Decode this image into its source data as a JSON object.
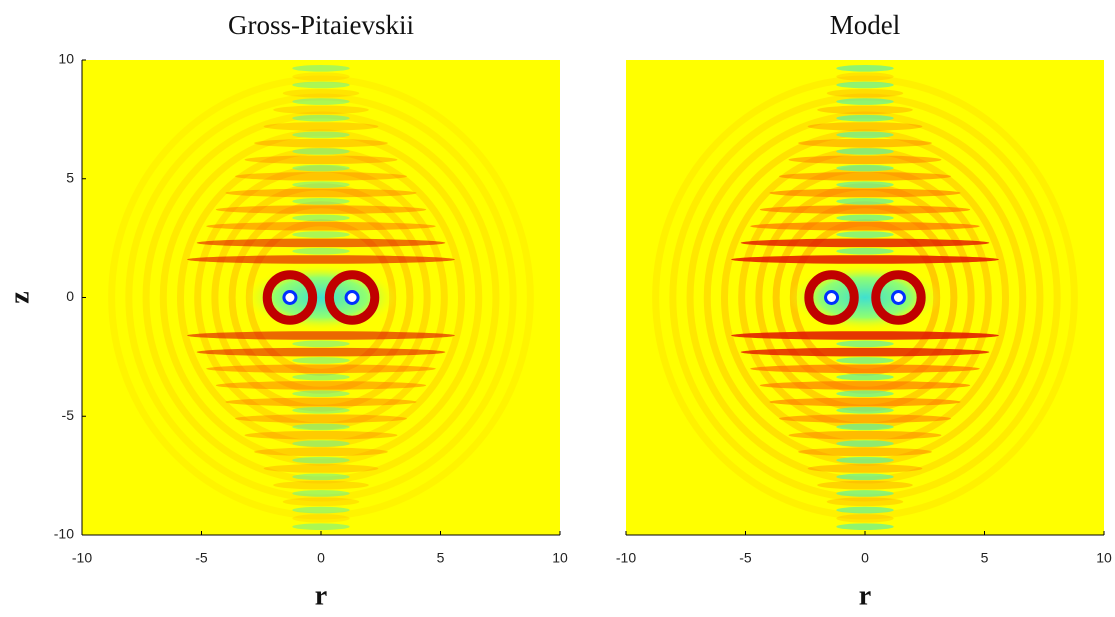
{
  "chart_data": [
    {
      "type": "heatmap",
      "title": "Gross-Pitaievskii",
      "xlabel": "r",
      "ylabel": "z",
      "xlim": [
        -10,
        10
      ],
      "ylim": [
        -10,
        10
      ],
      "xticks": [
        -10,
        -5,
        0,
        5,
        10
      ],
      "yticks": [
        -10,
        -5,
        0,
        5,
        10
      ],
      "vortices": {
        "x": [
          -1.3,
          1.3
        ],
        "y": [
          0,
          0
        ]
      }
    },
    {
      "type": "heatmap",
      "title": "Model",
      "xlabel": "r",
      "xlim": [
        -10,
        10
      ],
      "ylim": [
        -10,
        10
      ],
      "xticks": [
        -10,
        -5,
        0,
        5,
        10
      ],
      "vortices": {
        "x": [
          -1.4,
          1.4
        ],
        "y": [
          0,
          0
        ]
      }
    }
  ]
}
